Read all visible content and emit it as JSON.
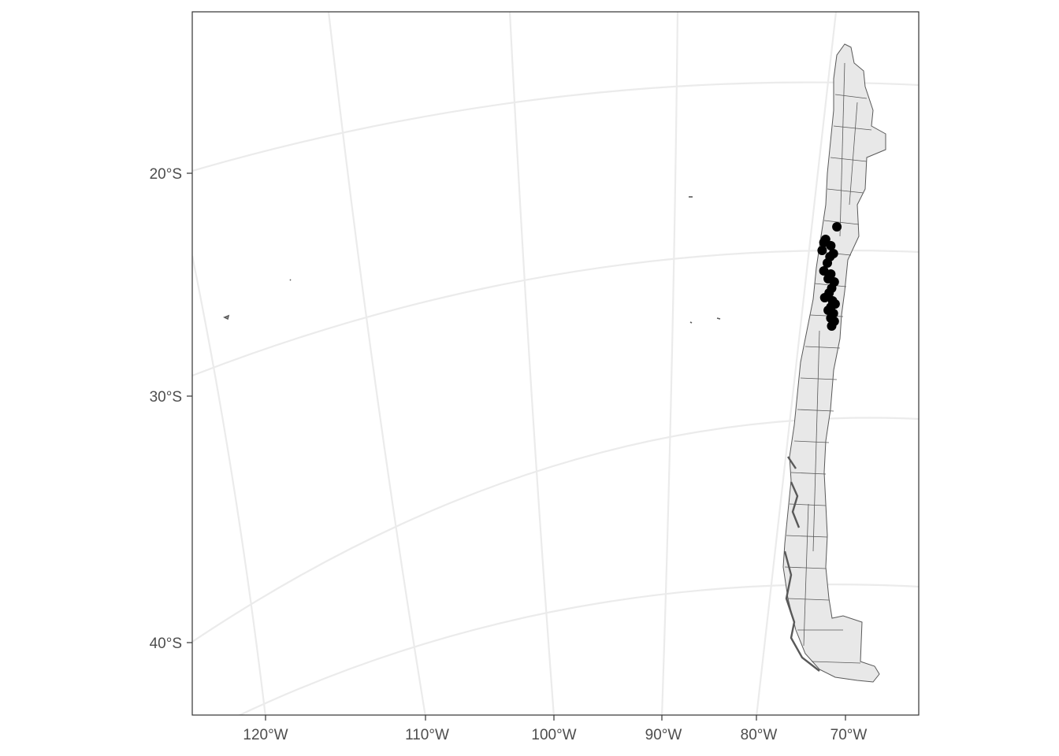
{
  "map": {
    "type": "map",
    "projection": "conic (south polar)",
    "region": "Chile (comunas)",
    "panel_border": true,
    "graticule": true,
    "y_axis": {
      "ticks": [
        "20°S",
        "30°S",
        "40°S"
      ]
    },
    "x_axis": {
      "ticks": [
        "120°W",
        "110°W",
        "100°W",
        "90°W",
        "80°W",
        "70°W"
      ]
    },
    "colors": {
      "land_fill": "#e8e8e8",
      "land_border": "#595959",
      "graticule": "#ebebeb",
      "points": "#000000",
      "panel_border": "#333333",
      "axis_text": "#4d4d4d"
    }
  },
  "chart_data": {
    "type": "scatter",
    "title": "",
    "xlabel": "",
    "ylabel": "",
    "x_ticks": [
      "120°W",
      "110°W",
      "100°W",
      "90°W",
      "80°W",
      "70°W"
    ],
    "y_ticks": [
      "20°S",
      "30°S",
      "40°S"
    ],
    "series": [
      {
        "points": [
          {
            "lon": -69.9,
            "lat": -23.6
          },
          {
            "lon": -71.2,
            "lat": -24.4
          },
          {
            "lon": -71.4,
            "lat": -24.6
          },
          {
            "lon": -70.6,
            "lat": -24.8
          },
          {
            "lon": -71.6,
            "lat": -25.1
          },
          {
            "lon": -70.3,
            "lat": -25.3
          },
          {
            "lon": -70.7,
            "lat": -25.5
          },
          {
            "lon": -71.0,
            "lat": -25.9
          },
          {
            "lon": -71.4,
            "lat": -26.4
          },
          {
            "lon": -70.6,
            "lat": -26.6
          },
          {
            "lon": -70.9,
            "lat": -26.9
          },
          {
            "lon": -70.2,
            "lat": -27.1
          },
          {
            "lon": -70.5,
            "lat": -27.5
          },
          {
            "lon": -70.8,
            "lat": -27.8
          },
          {
            "lon": -71.3,
            "lat": -28.1
          },
          {
            "lon": -70.4,
            "lat": -28.3
          },
          {
            "lon": -70.1,
            "lat": -28.5
          },
          {
            "lon": -70.6,
            "lat": -28.7
          },
          {
            "lon": -70.9,
            "lat": -28.9
          },
          {
            "lon": -70.3,
            "lat": -29.1
          },
          {
            "lon": -70.6,
            "lat": -29.4
          },
          {
            "lon": -70.2,
            "lat": -29.6
          },
          {
            "lon": -70.5,
            "lat": -29.9
          }
        ]
      }
    ]
  }
}
